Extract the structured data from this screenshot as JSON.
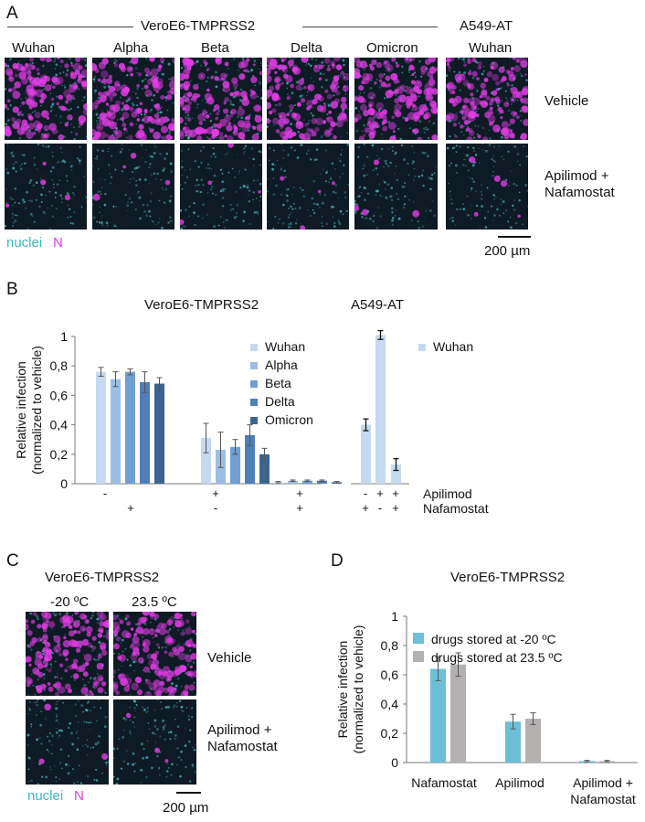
{
  "colors": {
    "nuclei": "#4fc9d2",
    "n_protein": "#e23ce6",
    "background_micro": "#0e1a24",
    "wuhan": "#c5d9f0",
    "alpha": "#9dbde3",
    "beta": "#6f9fd3",
    "delta": "#4f7fb8",
    "omicron": "#3d6391",
    "stored_minus20": "#6cbfd6",
    "stored_23_5": "#b3b0b0"
  },
  "panel_a": {
    "letter": "A",
    "header_verotmprss2": "VeroE6-TMPRSS2",
    "header_a549": "A549-AT",
    "columns": [
      "Wuhan",
      "Alpha",
      "Beta",
      "Delta",
      "Omicron",
      "Wuhan"
    ],
    "row_labels": [
      "Vehicle",
      "Apilimod +",
      "Nafamostat"
    ],
    "legend_nuclei": "nuclei",
    "legend_n": "N",
    "scalebar": "200 µm"
  },
  "panel_b": {
    "letter": "B",
    "title_left": "VeroE6-TMPRSS2",
    "title_right": "A549-AT",
    "ylabel_line1": "Relative infection",
    "ylabel_line2": "(normalized to vehicle)",
    "row_label_apilimod": "Apilimod",
    "row_label_nafamostat": "Nafamostat",
    "apilimod_signs_left": [
      "-",
      "+",
      "+"
    ],
    "nafamostat_signs_left": [
      "+",
      "-",
      "+"
    ],
    "apilimod_signs_right": [
      "-",
      "+",
      "+"
    ],
    "nafamostat_signs_right": [
      "+",
      "-",
      "+"
    ],
    "legend_right_label": "Wuhan"
  },
  "panel_c": {
    "letter": "C",
    "title": "VeroE6-TMPRSS2",
    "col_minus20": "-20 ºC",
    "col_23_5": "23.5  ºC",
    "row_vehicle": "Vehicle",
    "row_drug_line1": "Apilimod +",
    "row_drug_line2": "Nafamostat",
    "legend_nuclei": "nuclei",
    "legend_n": "N",
    "scalebar": "200 µm"
  },
  "panel_d": {
    "letter": "D",
    "title": "VeroE6-TMPRSS2",
    "ylabel_line1": "Relative infection",
    "ylabel_line2": "(normalized to vehicle)",
    "cat_line2": "Nafamostat"
  },
  "chart_data": [
    {
      "type": "bar",
      "panel": "B-left",
      "title": "VeroE6-TMPRSS2",
      "ylabel": "Relative infection (normalized to vehicle)",
      "ylim": [
        0,
        1
      ],
      "yticks": [
        "0",
        "0,2",
        "0,4",
        "0,6",
        "0,8",
        "1"
      ],
      "categories": [
        "Apilimod - / Nafamostat +",
        "Apilimod + / Nafamostat -",
        "Apilimod + / Nafamostat +"
      ],
      "series": [
        {
          "name": "Wuhan",
          "values": [
            0.76,
            0.31,
            0.01
          ],
          "errors": [
            0.03,
            0.1,
            0.005
          ]
        },
        {
          "name": "Alpha",
          "values": [
            0.71,
            0.23,
            0.02
          ],
          "errors": [
            0.05,
            0.12,
            0.005
          ]
        },
        {
          "name": "Beta",
          "values": [
            0.76,
            0.25,
            0.02
          ],
          "errors": [
            0.02,
            0.05,
            0.005
          ]
        },
        {
          "name": "Delta",
          "values": [
            0.69,
            0.33,
            0.02
          ],
          "errors": [
            0.07,
            0.07,
            0.005
          ]
        },
        {
          "name": "Omicron",
          "values": [
            0.68,
            0.2,
            0.01
          ],
          "errors": [
            0.04,
            0.04,
            0.005
          ]
        }
      ],
      "legend": "right"
    },
    {
      "type": "bar",
      "panel": "B-right",
      "title": "A549-AT",
      "ylim": [
        0,
        1
      ],
      "categories": [
        "Apilimod - / Nafamostat +",
        "Apilimod + / Nafamostat -",
        "Apilimod + / Nafamostat +"
      ],
      "series": [
        {
          "name": "Wuhan",
          "values": [
            0.4,
            1.01,
            0.13
          ],
          "errors": [
            0.04,
            0.03,
            0.04
          ]
        }
      ],
      "legend": "right"
    },
    {
      "type": "bar",
      "panel": "D",
      "title": "VeroE6-TMPRSS2",
      "ylabel": "Relative infection (normalized to vehicle)",
      "ylim": [
        0,
        1
      ],
      "yticks": [
        "0",
        "0,2",
        "0,4",
        "0,6",
        "0,8",
        "1"
      ],
      "categories": [
        "Nafamostat",
        "Apilimod",
        "Apilimod +"
      ],
      "series": [
        {
          "name": "drugs stored at -20 ºC",
          "values": [
            0.64,
            0.28,
            0.01
          ],
          "errors": [
            0.08,
            0.05,
            0.005
          ]
        },
        {
          "name": "drugs stored at 23.5 ºC",
          "values": [
            0.67,
            0.3,
            0.01
          ],
          "errors": [
            0.08,
            0.04,
            0.005
          ]
        }
      ],
      "legend": "top-left"
    }
  ]
}
